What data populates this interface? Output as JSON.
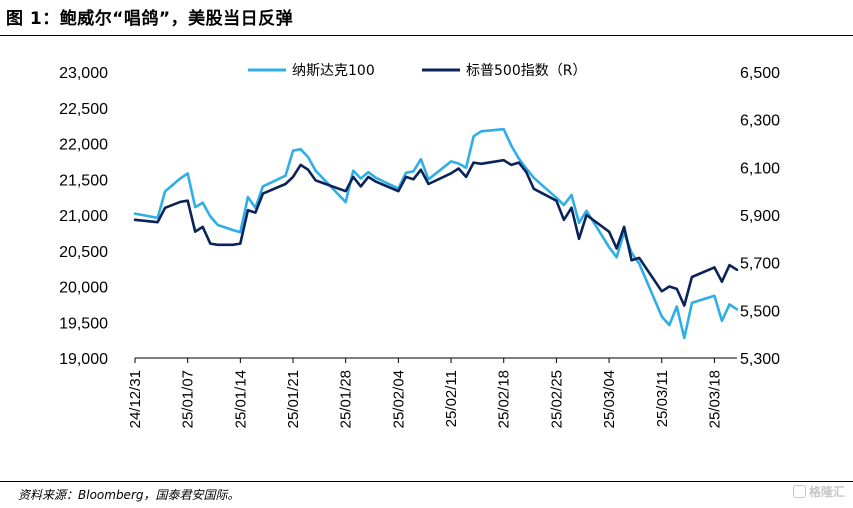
{
  "title": "图 1：鲍威尔“唱鸽”，美股当日反弹",
  "source": "资料来源：Bloomberg，国泰君安国际。",
  "watermark": "格隆汇",
  "colors": {
    "nasdaq": "#2eaee6",
    "sp500": "#0a2358"
  },
  "chart_data": {
    "type": "line",
    "title": "",
    "xlabel": "",
    "ylabel": "",
    "legend_position": "top-center",
    "x_tick_labels": [
      "24/12/31",
      "25/01/07",
      "25/01/14",
      "25/01/21",
      "25/01/28",
      "25/02/04",
      "25/02/11",
      "25/02/18",
      "25/02/25",
      "25/03/04",
      "25/03/11",
      "25/03/18"
    ],
    "y_left": {
      "ylim": [
        19000,
        23000
      ],
      "ticks": [
        "23,000",
        "22,500",
        "22,000",
        "21,500",
        "21,000",
        "20,500",
        "20,000",
        "19,500",
        "19,000"
      ]
    },
    "y_right": {
      "ylim": [
        5300,
        6500
      ],
      "ticks": [
        "6,500",
        "6,300",
        "6,100",
        "5,900",
        "5,700",
        "5,500",
        "5,300"
      ]
    },
    "x_range": [
      0,
      80
    ],
    "series": [
      {
        "name": "纳斯达克100",
        "axis": "left",
        "x": [
          0,
          3,
          4,
          6,
          7,
          8,
          9,
          10,
          11,
          13,
          14,
          15,
          16,
          17,
          20,
          21,
          22,
          23,
          24,
          28,
          29,
          30,
          31,
          32,
          35,
          36,
          37,
          38,
          39,
          42,
          43,
          44,
          45,
          46,
          49,
          50,
          51,
          52,
          53,
          56,
          57,
          58,
          59,
          60,
          63,
          64,
          65,
          66,
          67,
          70,
          71,
          72,
          73,
          74,
          77,
          78,
          79,
          80
        ],
        "values": [
          21020,
          20960,
          21330,
          21510,
          21580,
          21110,
          21170,
          20980,
          20860,
          20790,
          20760,
          21250,
          21100,
          21400,
          21550,
          21900,
          21920,
          21810,
          21620,
          21180,
          21620,
          21510,
          21600,
          21520,
          21370,
          21590,
          21610,
          21780,
          21500,
          21750,
          21720,
          21660,
          22100,
          22170,
          22200,
          21970,
          21790,
          21650,
          21520,
          21240,
          21140,
          21280,
          20890,
          21060,
          20550,
          20410,
          20760,
          20470,
          20320,
          19580,
          19460,
          19720,
          19280,
          19770,
          19870,
          19520,
          19750,
          19680
        ]
      },
      {
        "name": "标普500指数（R）",
        "axis": "right",
        "x": [
          0,
          3,
          4,
          6,
          7,
          8,
          9,
          10,
          11,
          13,
          14,
          15,
          16,
          17,
          20,
          21,
          22,
          23,
          24,
          28,
          29,
          30,
          31,
          32,
          35,
          36,
          37,
          38,
          39,
          42,
          43,
          44,
          45,
          46,
          49,
          50,
          51,
          52,
          53,
          56,
          57,
          58,
          59,
          60,
          63,
          64,
          65,
          66,
          67,
          70,
          71,
          72,
          73,
          74,
          77,
          78,
          79,
          80
        ],
        "values": [
          5880,
          5870,
          5930,
          5955,
          5960,
          5830,
          5850,
          5780,
          5775,
          5775,
          5780,
          5920,
          5910,
          5990,
          6030,
          6060,
          6110,
          6090,
          6045,
          6000,
          6060,
          6020,
          6060,
          6040,
          6000,
          6060,
          6050,
          6090,
          6030,
          6075,
          6095,
          6060,
          6120,
          6115,
          6130,
          6110,
          6120,
          6080,
          6010,
          5960,
          5880,
          5930,
          5800,
          5900,
          5830,
          5760,
          5850,
          5710,
          5720,
          5580,
          5600,
          5590,
          5520,
          5640,
          5680,
          5620,
          5690,
          5670
        ]
      }
    ]
  }
}
